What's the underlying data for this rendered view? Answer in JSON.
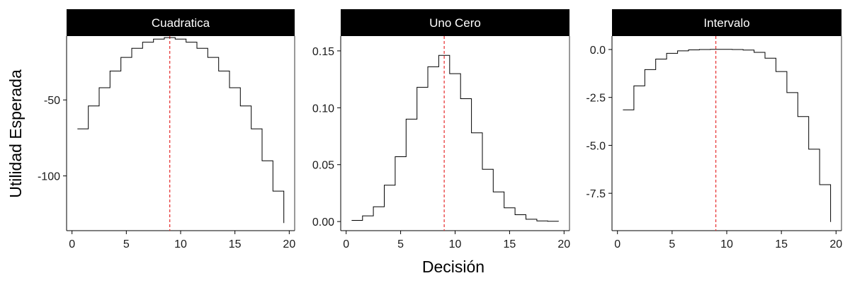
{
  "colors": {
    "strip_background": "#000000",
    "strip_text": "#ffffff",
    "step_line": "#000000",
    "reference_line": "#e8393a",
    "panel_border": "#000000"
  },
  "chart_data": [
    {
      "type": "line",
      "step": true,
      "title": "Cuadratica",
      "xlabel": "Decisión",
      "ylabel": "Utilidad Esperada",
      "xlim": [
        -0.5,
        20.5
      ],
      "ylim": [
        -136,
        -8
      ],
      "xticks": [
        0,
        5,
        10,
        15,
        20
      ],
      "yticks": [
        -50,
        -100
      ],
      "reference_x": 9,
      "series": [
        {
          "x": [
            0.5,
            1.5,
            2.5,
            3.5,
            4.5,
            5.5,
            6.5,
            7.5,
            8.5,
            9.5,
            10.5,
            11.5,
            12.5,
            13.5,
            14.5,
            15.5,
            16.5,
            17.5,
            18.5,
            19.5
          ],
          "values": [
            -69,
            -54,
            -42,
            -31,
            -22,
            -16,
            -12,
            -10,
            -9,
            -10,
            -12,
            -16,
            -22,
            -31,
            -42,
            -54,
            -69,
            -90,
            -110,
            -131
          ]
        }
      ]
    },
    {
      "type": "line",
      "step": true,
      "title": "Uno Cero",
      "xlabel": "Decisión",
      "ylabel": "",
      "xlim": [
        -0.5,
        20.5
      ],
      "ylim": [
        -0.008,
        0.163
      ],
      "xticks": [
        0,
        5,
        10,
        15,
        20
      ],
      "yticks": [
        0.15,
        0.1,
        0.05,
        0.0
      ],
      "ytick_labels": [
        "0.15",
        "0.10",
        "0.05",
        "0.00"
      ],
      "reference_x": 9,
      "series": [
        {
          "x": [
            0.5,
            1.5,
            2.5,
            3.5,
            4.5,
            5.5,
            6.5,
            7.5,
            8.5,
            9.5,
            10.5,
            11.5,
            12.5,
            13.5,
            14.5,
            15.5,
            16.5,
            17.5,
            18.5,
            19.5
          ],
          "values": [
            0.001,
            0.005,
            0.013,
            0.032,
            0.057,
            0.09,
            0.118,
            0.136,
            0.146,
            0.13,
            0.108,
            0.078,
            0.046,
            0.026,
            0.012,
            0.006,
            0.002,
            0.0005,
            0.0003,
            0.0002
          ]
        }
      ]
    },
    {
      "type": "line",
      "step": true,
      "title": "Intervalo",
      "xlabel": "Decisión",
      "ylabel": "",
      "xlim": [
        -0.5,
        20.5
      ],
      "ylim": [
        -9.45,
        0.7
      ],
      "xticks": [
        0,
        5,
        10,
        15,
        20
      ],
      "yticks": [
        0.0,
        -2.5,
        -5.0,
        -7.5
      ],
      "ytick_labels": [
        "0.0",
        "-2.5",
        "-5.0",
        "-7.5"
      ],
      "reference_x": 9,
      "series": [
        {
          "x": [
            0.5,
            1.5,
            2.5,
            3.5,
            4.5,
            5.5,
            6.5,
            7.5,
            8.5,
            9.5,
            10.5,
            11.5,
            12.5,
            13.5,
            14.5,
            15.5,
            16.5,
            17.5,
            18.5,
            19.5
          ],
          "values": [
            -3.15,
            -1.9,
            -1.05,
            -0.5,
            -0.2,
            -0.07,
            -0.02,
            0.0,
            0.01,
            0.01,
            0.0,
            -0.03,
            -0.15,
            -0.45,
            -1.15,
            -2.25,
            -3.5,
            -5.2,
            -7.05,
            -9.0
          ]
        }
      ]
    }
  ],
  "axis_titles": {
    "x": "Decisión",
    "y": "Utilidad Esperada"
  }
}
